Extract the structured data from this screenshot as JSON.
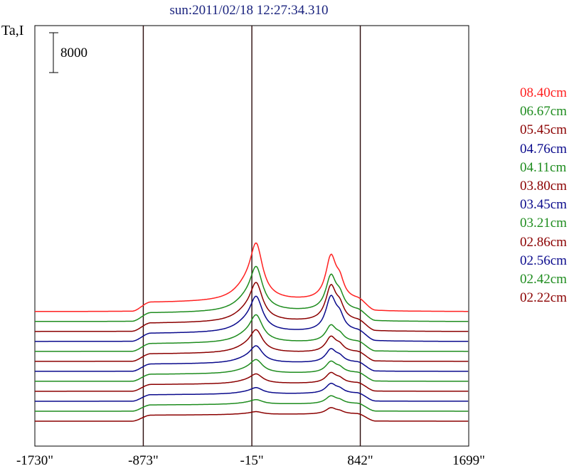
{
  "chart_data": {
    "type": "line",
    "title": "sun:2011/02/18 12:27:34.310",
    "ylabel": "Ta,I",
    "scale_bar_label": "8000",
    "x_tick_labels": [
      "-1730\"",
      "-873\"",
      "-15\"",
      "842\"",
      "1699\""
    ],
    "x_ticks": [
      -1730,
      -873,
      -15,
      842,
      1699
    ],
    "xlim": [
      -1730,
      1699
    ],
    "vertical_lines_x": [
      -873,
      -15,
      842
    ],
    "grid": false,
    "legend_placement": "right",
    "series": [
      {
        "name": "08.40cm",
        "color": "#ff2020",
        "offset": 22000,
        "disk": 1800,
        "peak1": 10000,
        "peak2": 8500
      },
      {
        "name": "06.67cm",
        "color": "#1e8c1e",
        "offset": 20000,
        "disk": 1700,
        "peak1": 7800,
        "peak2": 6800
      },
      {
        "name": "05.45cm",
        "color": "#8b0000",
        "offset": 18000,
        "disk": 1650,
        "peak1": 6800,
        "peak2": 6800
      },
      {
        "name": "04.76cm",
        "color": "#0a0a8c",
        "offset": 16000,
        "disk": 1600,
        "peak1": 6200,
        "peak2": 6700
      },
      {
        "name": "04.11cm",
        "color": "#1e8c1e",
        "offset": 14000,
        "disk": 1550,
        "peak1": 4800,
        "peak2": 3200
      },
      {
        "name": "03.80cm",
        "color": "#8b0000",
        "offset": 12000,
        "disk": 1500,
        "peak1": 4000,
        "peak2": 3000
      },
      {
        "name": "03.45cm",
        "color": "#0a0a8c",
        "offset": 10000,
        "disk": 1450,
        "peak1": 3000,
        "peak2": 2600
      },
      {
        "name": "03.21cm",
        "color": "#1e8c1e",
        "offset": 8000,
        "disk": 1400,
        "peak1": 2400,
        "peak2": 2200
      },
      {
        "name": "02.86cm",
        "color": "#8b0000",
        "offset": 6000,
        "disk": 1350,
        "peak1": 1700,
        "peak2": 2000
      },
      {
        "name": "02.56cm",
        "color": "#0a0a8c",
        "offset": 4000,
        "disk": 1300,
        "peak1": 1100,
        "peak2": 1900
      },
      {
        "name": "02.42cm",
        "color": "#1e8c1e",
        "offset": 2000,
        "disk": 1250,
        "peak1": 800,
        "peak2": 1500
      },
      {
        "name": "02.22cm",
        "color": "#8b0000",
        "offset": 0,
        "disk": 1200,
        "peak1": 500,
        "peak2": 1200
      }
    ]
  }
}
